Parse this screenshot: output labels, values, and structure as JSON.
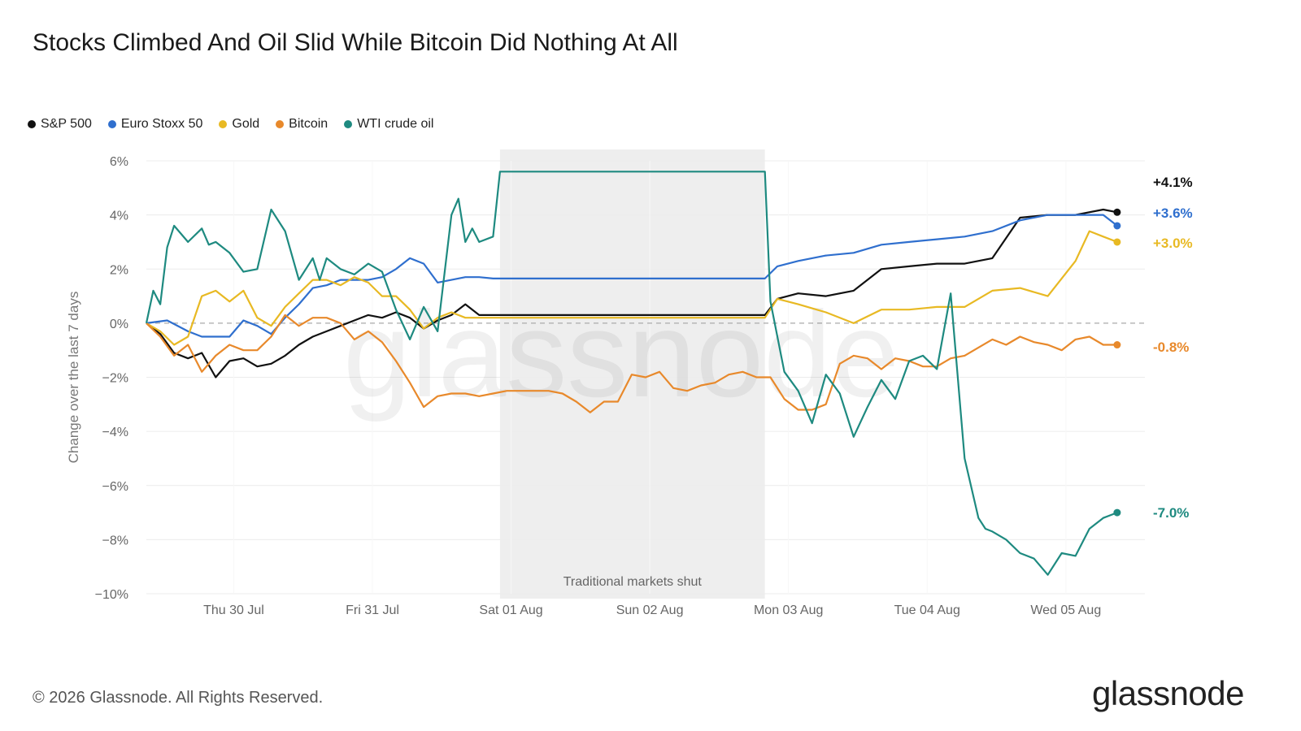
{
  "title": "Stocks Climbed And Oil Slid While Bitcoin Did Nothing At All",
  "footer": "© 2026 Glassnode. All Rights Reserved.",
  "brand": "glassnode",
  "watermark": "glassnode",
  "chart_data": {
    "type": "line",
    "ylabel": "Change over the last 7 days",
    "ylim": [
      -10,
      6
    ],
    "yticks": [
      6,
      4,
      2,
      0,
      -2,
      -4,
      -6,
      -8,
      -10
    ],
    "ytick_labels": [
      "6%",
      "4%",
      "2%",
      "0%",
      "−2%",
      "−4%",
      "−6%",
      "−8%",
      "−10%"
    ],
    "xlim": [
      0,
      7.2
    ],
    "xticks": [
      0.63,
      1.63,
      2.63,
      3.63,
      4.63,
      5.63,
      6.63
    ],
    "xtick_labels": [
      "Thu 30 Jul",
      "Fri 31 Jul",
      "Sat 01 Aug",
      "Sun 02 Aug",
      "Mon 03 Aug",
      "Tue 04 Aug",
      "Wed 05 Aug"
    ],
    "shaded_region": {
      "x0": 2.55,
      "x1": 4.46,
      "label": "Traditional markets shut"
    },
    "legend_position": "top-left",
    "grid": true,
    "series": [
      {
        "name": "S&P 500",
        "color": "#111111",
        "end_label": "+4.1%",
        "x": [
          0,
          0.1,
          0.2,
          0.3,
          0.4,
          0.5,
          0.6,
          0.7,
          0.8,
          0.9,
          1.0,
          1.1,
          1.2,
          1.3,
          1.4,
          1.5,
          1.6,
          1.7,
          1.8,
          1.9,
          2.0,
          2.1,
          2.2,
          2.3,
          2.4,
          2.5,
          4.46,
          4.55,
          4.7,
          4.9,
          5.1,
          5.3,
          5.5,
          5.7,
          5.9,
          6.1,
          6.3,
          6.5,
          6.7,
          6.9,
          7.0
        ],
        "y": [
          0,
          -0.4,
          -1.1,
          -1.3,
          -1.1,
          -2.0,
          -1.4,
          -1.3,
          -1.6,
          -1.5,
          -1.2,
          -0.8,
          -0.5,
          -0.3,
          -0.1,
          0.1,
          0.3,
          0.2,
          0.4,
          0.2,
          -0.2,
          0.1,
          0.3,
          0.7,
          0.3,
          0.3,
          0.3,
          0.9,
          1.1,
          1.0,
          1.2,
          2.0,
          2.1,
          2.2,
          2.2,
          2.4,
          3.9,
          4.0,
          4.0,
          4.2,
          4.1
        ]
      },
      {
        "name": "Euro Stoxx 50",
        "color": "#2f6fce",
        "end_label": "+3.6%",
        "x": [
          0,
          0.15,
          0.3,
          0.4,
          0.5,
          0.6,
          0.7,
          0.8,
          0.9,
          1.0,
          1.1,
          1.2,
          1.3,
          1.4,
          1.5,
          1.6,
          1.7,
          1.8,
          1.9,
          2.0,
          2.1,
          2.2,
          2.3,
          2.4,
          2.5,
          4.46,
          4.55,
          4.7,
          4.9,
          5.1,
          5.3,
          5.5,
          5.7,
          5.9,
          6.1,
          6.3,
          6.5,
          6.7,
          6.9,
          7.0
        ],
        "y": [
          0,
          0.1,
          -0.3,
          -0.5,
          -0.5,
          -0.5,
          0.1,
          -0.1,
          -0.4,
          0.2,
          0.7,
          1.3,
          1.4,
          1.6,
          1.6,
          1.6,
          1.7,
          2.0,
          2.4,
          2.2,
          1.5,
          1.6,
          1.7,
          1.7,
          1.65,
          1.65,
          2.1,
          2.3,
          2.5,
          2.6,
          2.9,
          3.0,
          3.1,
          3.2,
          3.4,
          3.8,
          4.0,
          4.0,
          4.0,
          3.6
        ]
      },
      {
        "name": "Gold",
        "color": "#e8b923",
        "end_label": "+3.0%",
        "x": [
          0,
          0.1,
          0.2,
          0.3,
          0.4,
          0.5,
          0.6,
          0.7,
          0.8,
          0.9,
          1.0,
          1.1,
          1.2,
          1.3,
          1.4,
          1.5,
          1.6,
          1.7,
          1.8,
          1.9,
          2.0,
          2.1,
          2.2,
          2.3,
          2.4,
          2.5,
          4.46,
          4.55,
          4.7,
          4.9,
          5.1,
          5.3,
          5.5,
          5.7,
          5.9,
          6.1,
          6.3,
          6.5,
          6.7,
          6.8,
          6.9,
          7.0
        ],
        "y": [
          0,
          -0.3,
          -0.8,
          -0.5,
          1.0,
          1.2,
          0.8,
          1.2,
          0.2,
          -0.1,
          0.6,
          1.1,
          1.6,
          1.6,
          1.4,
          1.7,
          1.5,
          1.0,
          1.0,
          0.5,
          -0.2,
          0.2,
          0.4,
          0.2,
          0.2,
          0.2,
          0.2,
          0.9,
          0.7,
          0.4,
          0.0,
          0.5,
          0.5,
          0.6,
          0.6,
          1.2,
          1.3,
          1.0,
          2.3,
          3.4,
          3.2,
          3.0
        ]
      },
      {
        "name": "Bitcoin",
        "color": "#e8892b",
        "end_label": "-0.8%",
        "x": [
          0,
          0.1,
          0.2,
          0.3,
          0.4,
          0.5,
          0.6,
          0.7,
          0.8,
          0.9,
          1.0,
          1.1,
          1.2,
          1.3,
          1.4,
          1.5,
          1.6,
          1.7,
          1.8,
          1.9,
          2.0,
          2.1,
          2.2,
          2.3,
          2.4,
          2.5,
          2.6,
          2.7,
          2.8,
          2.9,
          3.0,
          3.1,
          3.2,
          3.3,
          3.4,
          3.5,
          3.6,
          3.7,
          3.8,
          3.9,
          4.0,
          4.1,
          4.2,
          4.3,
          4.4,
          4.5,
          4.6,
          4.7,
          4.8,
          4.9,
          5.0,
          5.1,
          5.2,
          5.3,
          5.4,
          5.5,
          5.6,
          5.7,
          5.8,
          5.9,
          6.0,
          6.1,
          6.2,
          6.3,
          6.4,
          6.5,
          6.6,
          6.7,
          6.8,
          6.9,
          7.0
        ],
        "y": [
          0,
          -0.5,
          -1.2,
          -0.8,
          -1.8,
          -1.2,
          -0.8,
          -1.0,
          -1.0,
          -0.5,
          0.3,
          -0.1,
          0.2,
          0.2,
          0.0,
          -0.6,
          -0.3,
          -0.7,
          -1.4,
          -2.2,
          -3.1,
          -2.7,
          -2.6,
          -2.6,
          -2.7,
          -2.6,
          -2.5,
          -2.5,
          -2.5,
          -2.5,
          -2.6,
          -2.9,
          -3.3,
          -2.9,
          -2.9,
          -1.9,
          -2.0,
          -1.8,
          -2.4,
          -2.5,
          -2.3,
          -2.2,
          -1.9,
          -1.8,
          -2.0,
          -2.0,
          -2.8,
          -3.2,
          -3.2,
          -3.0,
          -1.5,
          -1.2,
          -1.3,
          -1.7,
          -1.3,
          -1.4,
          -1.6,
          -1.6,
          -1.3,
          -1.2,
          -0.9,
          -0.6,
          -0.8,
          -0.5,
          -0.7,
          -0.8,
          -1.0,
          -0.6,
          -0.5,
          -0.8,
          -0.8
        ]
      },
      {
        "name": "WTI crude oil",
        "color": "#1e8a80",
        "end_label": "-7.0%",
        "x": [
          0,
          0.05,
          0.1,
          0.15,
          0.2,
          0.3,
          0.4,
          0.45,
          0.5,
          0.6,
          0.7,
          0.8,
          0.9,
          1.0,
          1.1,
          1.2,
          1.25,
          1.3,
          1.4,
          1.5,
          1.6,
          1.7,
          1.8,
          1.9,
          2.0,
          2.1,
          2.2,
          2.25,
          2.3,
          2.35,
          2.4,
          2.5,
          2.55,
          4.46,
          4.5,
          4.6,
          4.7,
          4.8,
          4.9,
          5.0,
          5.1,
          5.2,
          5.3,
          5.4,
          5.5,
          5.6,
          5.7,
          5.8,
          5.9,
          6.0,
          6.05,
          6.1,
          6.2,
          6.3,
          6.4,
          6.5,
          6.6,
          6.7,
          6.8,
          6.9,
          7.0
        ],
        "y": [
          0,
          1.2,
          0.7,
          2.8,
          3.6,
          3.0,
          3.5,
          2.9,
          3.0,
          2.6,
          1.9,
          2.0,
          4.2,
          3.4,
          1.6,
          2.4,
          1.6,
          2.4,
          2.0,
          1.8,
          2.2,
          1.9,
          0.5,
          -0.6,
          0.6,
          -0.3,
          4.0,
          4.6,
          3.0,
          3.5,
          3.0,
          3.2,
          5.6,
          5.6,
          0.8,
          -1.8,
          -2.5,
          -3.7,
          -1.9,
          -2.6,
          -4.2,
          -3.1,
          -2.1,
          -2.8,
          -1.4,
          -1.2,
          -1.7,
          1.1,
          -5.0,
          -7.2,
          -7.6,
          -7.7,
          -8.0,
          -8.5,
          -8.7,
          -9.3,
          -8.5,
          -8.6,
          -7.6,
          -7.2,
          -7.0
        ]
      }
    ]
  }
}
